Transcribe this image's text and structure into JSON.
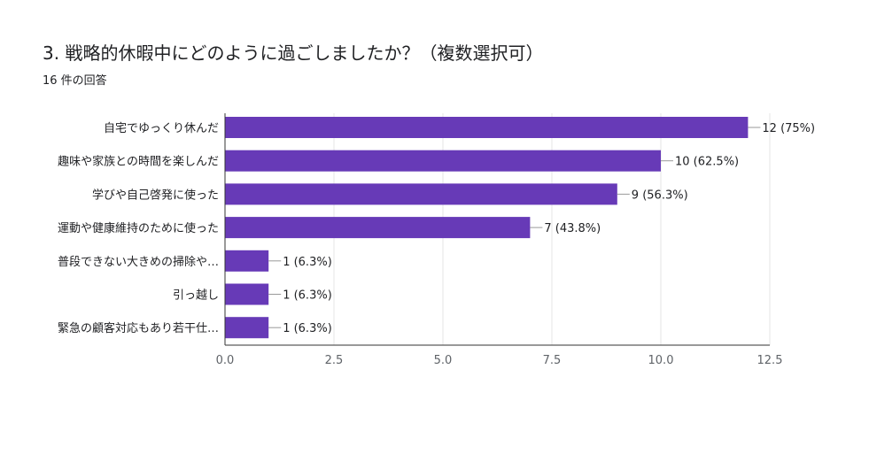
{
  "title": "3. 戦略的休暇中にどのように過ごしましたか？（複数選択可）",
  "response_count": "16 件の回答",
  "colors": {
    "bar": "#673ab7",
    "grid": "#e6e6e6",
    "axis": "#333333",
    "leader": "#999999"
  },
  "chart_data": {
    "type": "bar",
    "orientation": "horizontal",
    "categories": [
      "自宅でゆっくり休んだ",
      "趣味や家族との時間を楽しんだ",
      "学びや自己啓発に使った",
      "運動や健康維持のために使った",
      "普段できない大きめの掃除や…",
      "引っ越し",
      "緊急の顧客対応もあり若干仕…"
    ],
    "values": [
      12,
      10,
      9,
      7,
      1,
      1,
      1
    ],
    "data_labels": [
      "12 (75%)",
      "10 (62.5%)",
      "9 (56.3%)",
      "7 (43.8%)",
      "1 (6.3%)",
      "1 (6.3%)",
      "1 (6.3%)"
    ],
    "xlim": [
      0,
      12.5
    ],
    "xticks": [
      0,
      2.5,
      5,
      7.5,
      10,
      12.5
    ],
    "xtick_labels": [
      "0.0",
      "2.5",
      "5.0",
      "7.5",
      "10.0",
      "12.5"
    ],
    "grid": true
  }
}
